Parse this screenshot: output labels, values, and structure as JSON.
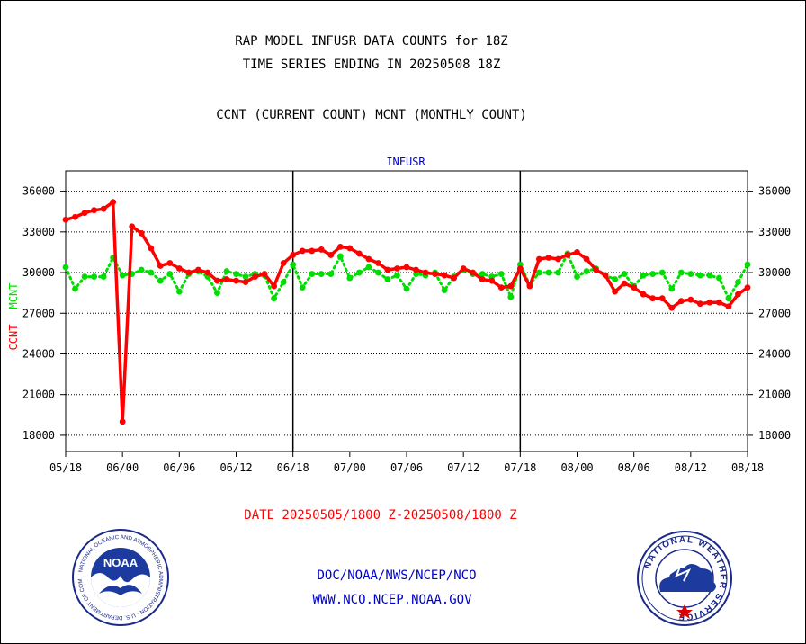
{
  "header": {
    "title_line1": "RAP MODEL INFUSR DATA COUNTS for 18Z",
    "title_line2": "TIME SERIES ENDING IN 20250508 18Z",
    "subtitle": "CCNT (CURRENT COUNT) MCNT (MONTHLY COUNT)"
  },
  "footer": {
    "date_range": "DATE 20250505/1800 Z-20250508/1800 Z",
    "org": "DOC/NOAA/NWS/NCEP/NCO",
    "url": "WWW.NCO.NCEP.NOAA.GOV"
  },
  "logos": {
    "noaa": {
      "label": "NOAA",
      "ring_text": "NATIONAL OCEANIC AND ATMOSPHERIC ADMINISTRATION · U.S. DEPARTMENT OF COMMERCE"
    },
    "nws": {
      "ring_text": "NATIONAL WEATHER SERVICE"
    }
  },
  "colors": {
    "ccnt": "#ff0000",
    "mcnt": "#00dd00",
    "label_blue": "#0000cc",
    "grid": "#000000"
  },
  "chart_data": {
    "type": "line",
    "title": "INFUSR",
    "ylabel_ccnt": "CCNT",
    "ylabel_mcnt": "MCNT",
    "ylim": [
      16800,
      37500
    ],
    "yticks": [
      18000,
      21000,
      24000,
      27000,
      30000,
      33000,
      36000
    ],
    "xtick_labels": [
      "05/18",
      "06/00",
      "06/06",
      "06/12",
      "06/18",
      "07/00",
      "07/06",
      "07/12",
      "07/18",
      "08/00",
      "08/06",
      "08/12",
      "08/18"
    ],
    "xlim_hours": [
      0,
      72
    ],
    "day_dividers_hours": [
      24,
      48
    ],
    "grid": true,
    "series": [
      {
        "name": "CCNT",
        "marker": "circle",
        "style": "solid",
        "values": [
          [
            0,
            33900
          ],
          [
            1,
            34100
          ],
          [
            2,
            34400
          ],
          [
            3,
            34600
          ],
          [
            4,
            34700
          ],
          [
            5,
            35200
          ],
          [
            6,
            19000
          ],
          [
            7,
            33400
          ],
          [
            8,
            32900
          ],
          [
            9,
            31800
          ],
          [
            10,
            30500
          ],
          [
            11,
            30700
          ],
          [
            12,
            30300
          ],
          [
            13,
            30000
          ],
          [
            14,
            30200
          ],
          [
            15,
            30000
          ],
          [
            16,
            29400
          ],
          [
            17,
            29500
          ],
          [
            18,
            29400
          ],
          [
            19,
            29300
          ],
          [
            20,
            29700
          ],
          [
            21,
            29900
          ],
          [
            22,
            29000
          ],
          [
            23,
            30700
          ],
          [
            24,
            31300
          ],
          [
            25,
            31600
          ],
          [
            26,
            31600
          ],
          [
            27,
            31700
          ],
          [
            28,
            31300
          ],
          [
            29,
            31900
          ],
          [
            30,
            31800
          ],
          [
            31,
            31400
          ],
          [
            32,
            31000
          ],
          [
            33,
            30700
          ],
          [
            34,
            30200
          ],
          [
            35,
            30300
          ],
          [
            36,
            30400
          ],
          [
            37,
            30200
          ],
          [
            38,
            30000
          ],
          [
            39,
            29900
          ],
          [
            40,
            29800
          ],
          [
            41,
            29600
          ],
          [
            42,
            30300
          ],
          [
            43,
            30000
          ],
          [
            44,
            29500
          ],
          [
            45,
            29400
          ],
          [
            46,
            28900
          ],
          [
            47,
            29000
          ],
          [
            48,
            30300
          ],
          [
            49,
            29000
          ],
          [
            50,
            31000
          ],
          [
            51,
            31100
          ],
          [
            52,
            31000
          ],
          [
            53,
            31300
          ],
          [
            54,
            31500
          ],
          [
            55,
            31000
          ],
          [
            56,
            30200
          ],
          [
            57,
            29800
          ],
          [
            58,
            28600
          ],
          [
            59,
            29200
          ],
          [
            60,
            28900
          ],
          [
            61,
            28400
          ],
          [
            62,
            28100
          ],
          [
            63,
            28100
          ],
          [
            64,
            27400
          ],
          [
            65,
            27900
          ],
          [
            66,
            28000
          ],
          [
            67,
            27700
          ],
          [
            68,
            27800
          ],
          [
            69,
            27800
          ],
          [
            70,
            27500
          ],
          [
            71,
            28400
          ],
          [
            72,
            28900
          ]
        ]
      },
      {
        "name": "MCNT",
        "marker": "circle",
        "style": "dotted",
        "values": [
          [
            0,
            30400
          ],
          [
            1,
            28800
          ],
          [
            2,
            29700
          ],
          [
            3,
            29700
          ],
          [
            4,
            29700
          ],
          [
            5,
            31100
          ],
          [
            6,
            29800
          ],
          [
            7,
            29900
          ],
          [
            8,
            30200
          ],
          [
            9,
            30000
          ],
          [
            10,
            29400
          ],
          [
            11,
            29900
          ],
          [
            12,
            28600
          ],
          [
            13,
            29900
          ],
          [
            14,
            30100
          ],
          [
            15,
            29700
          ],
          [
            16,
            28500
          ],
          [
            17,
            30100
          ],
          [
            18,
            29900
          ],
          [
            19,
            29700
          ],
          [
            20,
            29900
          ],
          [
            21,
            29800
          ],
          [
            22,
            28100
          ],
          [
            23,
            29300
          ],
          [
            24,
            30600
          ],
          [
            25,
            28900
          ],
          [
            26,
            29900
          ],
          [
            27,
            29900
          ],
          [
            28,
            29900
          ],
          [
            29,
            31200
          ],
          [
            30,
            29600
          ],
          [
            31,
            30000
          ],
          [
            32,
            30400
          ],
          [
            33,
            30000
          ],
          [
            34,
            29500
          ],
          [
            35,
            29800
          ],
          [
            36,
            28800
          ],
          [
            37,
            29900
          ],
          [
            38,
            29800
          ],
          [
            39,
            30000
          ],
          [
            40,
            28700
          ],
          [
            41,
            29700
          ],
          [
            42,
            30200
          ],
          [
            43,
            29900
          ],
          [
            44,
            29900
          ],
          [
            45,
            29700
          ],
          [
            46,
            29900
          ],
          [
            47,
            28200
          ],
          [
            48,
            30600
          ],
          [
            49,
            29100
          ],
          [
            50,
            30000
          ],
          [
            51,
            30000
          ],
          [
            52,
            30000
          ],
          [
            53,
            31400
          ],
          [
            54,
            29700
          ],
          [
            55,
            30100
          ],
          [
            56,
            30300
          ],
          [
            57,
            29800
          ],
          [
            58,
            29500
          ],
          [
            59,
            29900
          ],
          [
            60,
            29000
          ],
          [
            61,
            29800
          ],
          [
            62,
            29900
          ],
          [
            63,
            30000
          ],
          [
            64,
            28800
          ],
          [
            65,
            30000
          ],
          [
            66,
            29900
          ],
          [
            67,
            29800
          ],
          [
            68,
            29800
          ],
          [
            69,
            29600
          ],
          [
            70,
            28100
          ],
          [
            71,
            29300
          ],
          [
            72,
            30600
          ]
        ]
      }
    ]
  }
}
